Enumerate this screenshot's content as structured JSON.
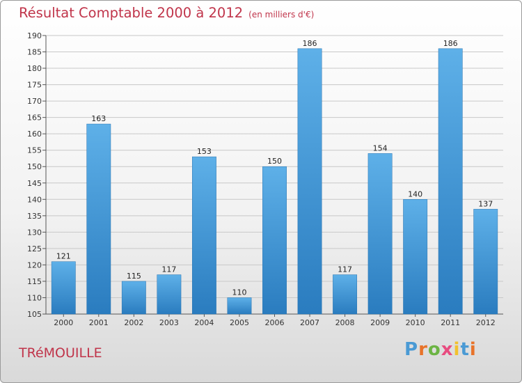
{
  "header": {
    "title": "Résultat Comptable 2000 à 2012",
    "subtitle": "(en milliers d'€)"
  },
  "footer": {
    "commune": "TRéMOUILLE",
    "logo": {
      "p": "P",
      "r": "r",
      "o": "o",
      "x": "x",
      "i": "i",
      "t": "t",
      "i2": "i"
    }
  },
  "colors": {
    "bar_top": "#5eb0e8",
    "bar_bottom": "#2a7cbf",
    "title": "#c0344a",
    "grid": "#c8c8c8"
  },
  "chart_data": {
    "type": "bar",
    "title": "Résultat Comptable 2000 à 2012",
    "subtitle": "(en milliers d'€)",
    "xlabel": "",
    "ylabel": "",
    "categories": [
      "2000",
      "2001",
      "2002",
      "2003",
      "2004",
      "2005",
      "2006",
      "2007",
      "2008",
      "2009",
      "2010",
      "2011",
      "2012"
    ],
    "values": [
      121,
      163,
      115,
      117,
      153,
      110,
      150,
      186,
      117,
      154,
      140,
      186,
      137
    ],
    "ylim": [
      105,
      190
    ],
    "yticks": [
      105,
      110,
      115,
      120,
      125,
      130,
      135,
      140,
      145,
      150,
      155,
      160,
      165,
      170,
      175,
      180,
      185,
      190
    ],
    "grid": true,
    "data_labels": true
  }
}
